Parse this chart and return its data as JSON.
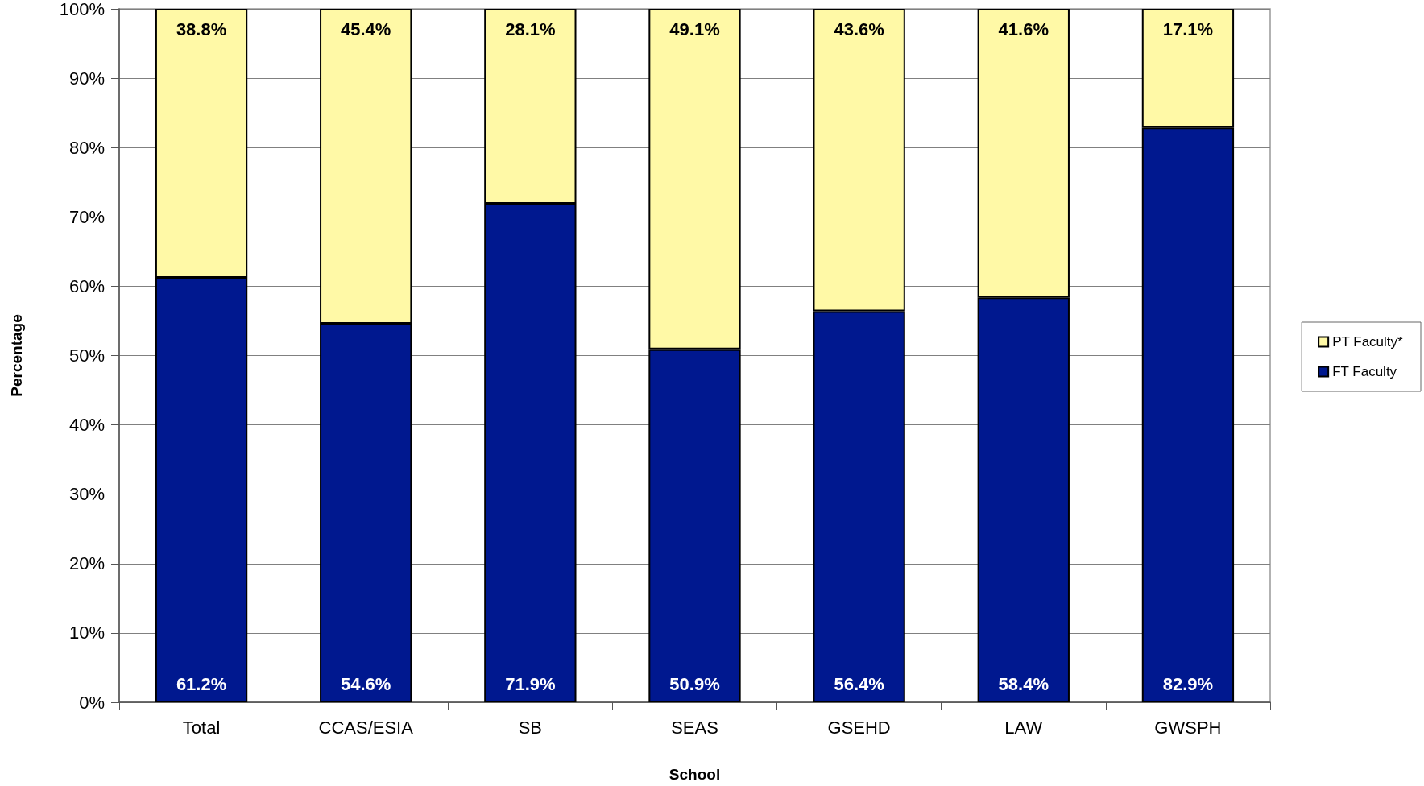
{
  "chart_data": {
    "type": "bar",
    "stacked": true,
    "xlabel": "School",
    "ylabel": "Percentage",
    "categories": [
      "Total",
      "CCAS/ESIA",
      "SB",
      "SEAS",
      "GSEHD",
      "LAW",
      "GWSPH"
    ],
    "series": [
      {
        "name": "FT Faculty",
        "color": "#00188f",
        "values": [
          61.2,
          54.6,
          71.9,
          50.9,
          56.4,
          58.4,
          82.9
        ],
        "value_labels": [
          "61.2%",
          "54.6%",
          "71.9%",
          "50.9%",
          "56.4%",
          "58.4%",
          "82.9%"
        ]
      },
      {
        "name": "PT Faculty*",
        "color": "#fff9a6",
        "values": [
          38.8,
          45.4,
          28.1,
          49.1,
          43.6,
          41.6,
          17.1
        ],
        "value_labels": [
          "38.8%",
          "45.4%",
          "28.1%",
          "49.1%",
          "43.6%",
          "41.6%",
          "17.1%"
        ]
      }
    ],
    "ylim": [
      0,
      100
    ],
    "yticks": [
      {
        "value": 0,
        "label": "0%"
      },
      {
        "value": 10,
        "label": "10%"
      },
      {
        "value": 20,
        "label": "20%"
      },
      {
        "value": 30,
        "label": "30%"
      },
      {
        "value": 40,
        "label": "40%"
      },
      {
        "value": 50,
        "label": "50%"
      },
      {
        "value": 60,
        "label": "60%"
      },
      {
        "value": 70,
        "label": "70%"
      },
      {
        "value": 80,
        "label": "80%"
      },
      {
        "value": 90,
        "label": "90%"
      },
      {
        "value": 100,
        "label": "100%"
      }
    ],
    "grid": "y",
    "legend": "right"
  }
}
